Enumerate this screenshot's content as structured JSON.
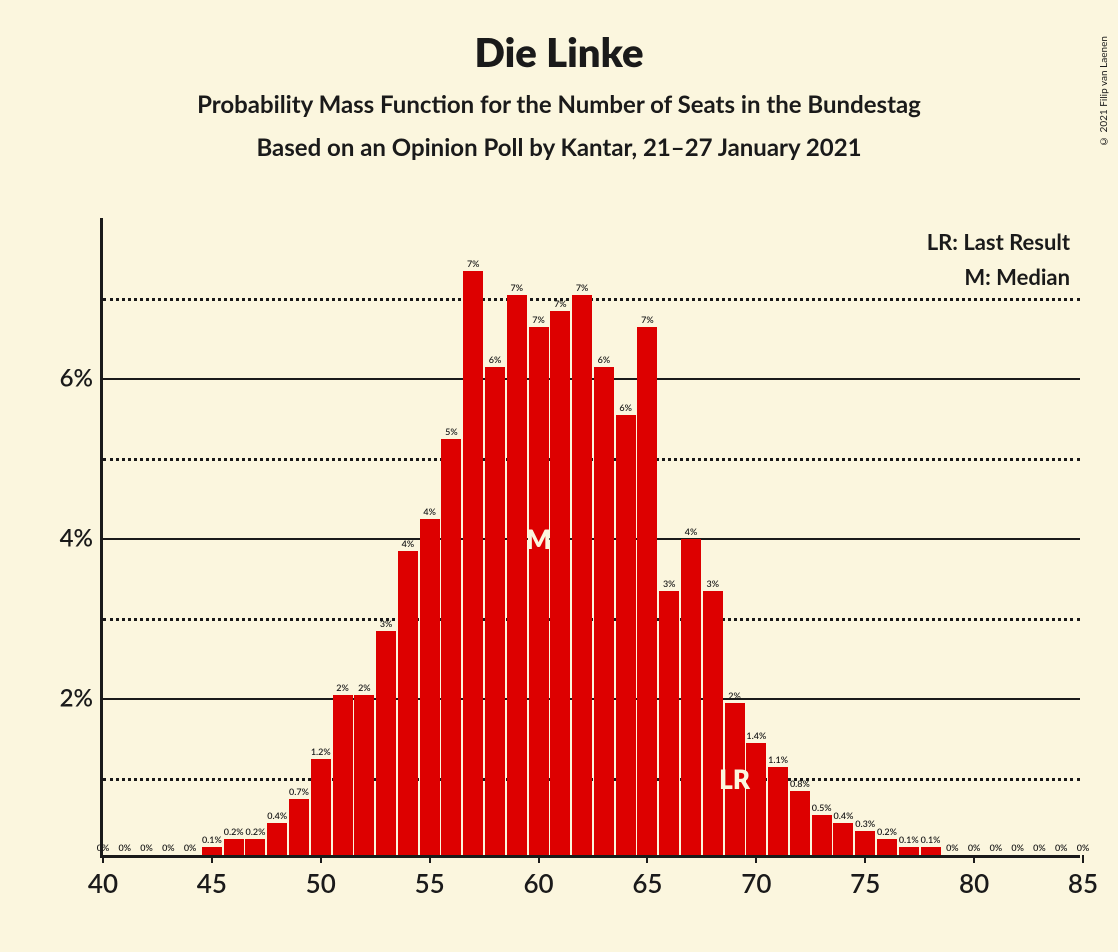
{
  "title": "Die Linke",
  "subtitle": "Probability Mass Function for the Number of Seats in the Bundestag",
  "subtitle2": "Based on an Opinion Poll by Kantar, 21–27 January 2021",
  "copyright": "© 2021 Filip van Laenen",
  "legend": {
    "lr": "LR: Last Result",
    "m": "M: Median"
  },
  "chart": {
    "type": "bar",
    "background_color": "#fbf6de",
    "bar_color": "#dd0000",
    "axis_color": "#1a1a1a",
    "grid_solid_color": "#1a1a1a",
    "grid_dotted_color": "#1a1a1a",
    "xlim": [
      40,
      85
    ],
    "xtick_step": 5,
    "ylim_pct": [
      0,
      8
    ],
    "ytick_major": [
      2,
      4,
      6
    ],
    "ytick_minor": [
      1,
      3,
      5,
      7
    ],
    "title_fontsize": 40,
    "subtitle_fontsize": 24,
    "axis_label_fontsize": 26,
    "bar_label_fontsize": 9,
    "median_seat": 60,
    "last_result_seat": 69,
    "marker_m_text": "M",
    "marker_lr_text": "LR",
    "bars": [
      {
        "seat": 40,
        "pct": 0,
        "label": "0%"
      },
      {
        "seat": 41,
        "pct": 0,
        "label": "0%"
      },
      {
        "seat": 42,
        "pct": 0,
        "label": "0%"
      },
      {
        "seat": 43,
        "pct": 0,
        "label": "0%"
      },
      {
        "seat": 44,
        "pct": 0,
        "label": "0%"
      },
      {
        "seat": 45,
        "pct": 0.1,
        "label": "0.1%"
      },
      {
        "seat": 46,
        "pct": 0.2,
        "label": "0.2%"
      },
      {
        "seat": 47,
        "pct": 0.2,
        "label": "0.2%"
      },
      {
        "seat": 48,
        "pct": 0.4,
        "label": "0.4%"
      },
      {
        "seat": 49,
        "pct": 0.7,
        "label": "0.7%"
      },
      {
        "seat": 50,
        "pct": 1.2,
        "label": "1.2%"
      },
      {
        "seat": 51,
        "pct": 2,
        "label": "2%"
      },
      {
        "seat": 52,
        "pct": 2,
        "label": "2%"
      },
      {
        "seat": 53,
        "pct": 2.8,
        "label": "3%"
      },
      {
        "seat": 54,
        "pct": 3.8,
        "label": "4%"
      },
      {
        "seat": 55,
        "pct": 4.2,
        "label": "4%"
      },
      {
        "seat": 56,
        "pct": 5.2,
        "label": "5%"
      },
      {
        "seat": 57,
        "pct": 7.3,
        "label": "7%"
      },
      {
        "seat": 58,
        "pct": 6.1,
        "label": "6%"
      },
      {
        "seat": 59,
        "pct": 7.0,
        "label": "7%"
      },
      {
        "seat": 60,
        "pct": 6.6,
        "label": "7%"
      },
      {
        "seat": 61,
        "pct": 6.8,
        "label": "7%"
      },
      {
        "seat": 62,
        "pct": 7.0,
        "label": "7%"
      },
      {
        "seat": 63,
        "pct": 6.1,
        "label": "6%"
      },
      {
        "seat": 64,
        "pct": 5.5,
        "label": "6%"
      },
      {
        "seat": 65,
        "pct": 6.6,
        "label": "7%"
      },
      {
        "seat": 66,
        "pct": 3.3,
        "label": "3%"
      },
      {
        "seat": 67,
        "pct": 3.95,
        "label": "4%"
      },
      {
        "seat": 68,
        "pct": 3.3,
        "label": "3%"
      },
      {
        "seat": 69,
        "pct": 1.9,
        "label": "2%"
      },
      {
        "seat": 70,
        "pct": 1.4,
        "label": "1.4%"
      },
      {
        "seat": 71,
        "pct": 1.1,
        "label": "1.1%"
      },
      {
        "seat": 72,
        "pct": 0.8,
        "label": "0.8%"
      },
      {
        "seat": 73,
        "pct": 0.5,
        "label": "0.5%"
      },
      {
        "seat": 74,
        "pct": 0.4,
        "label": "0.4%"
      },
      {
        "seat": 75,
        "pct": 0.3,
        "label": "0.3%"
      },
      {
        "seat": 76,
        "pct": 0.2,
        "label": "0.2%"
      },
      {
        "seat": 77,
        "pct": 0.1,
        "label": "0.1%"
      },
      {
        "seat": 78,
        "pct": 0.1,
        "label": "0.1%"
      },
      {
        "seat": 79,
        "pct": 0,
        "label": "0%"
      },
      {
        "seat": 80,
        "pct": 0,
        "label": "0%"
      },
      {
        "seat": 81,
        "pct": 0,
        "label": "0%"
      },
      {
        "seat": 82,
        "pct": 0,
        "label": "0%"
      },
      {
        "seat": 83,
        "pct": 0,
        "label": "0%"
      },
      {
        "seat": 84,
        "pct": 0,
        "label": "0%"
      },
      {
        "seat": 85,
        "pct": 0,
        "label": "0%"
      }
    ]
  }
}
